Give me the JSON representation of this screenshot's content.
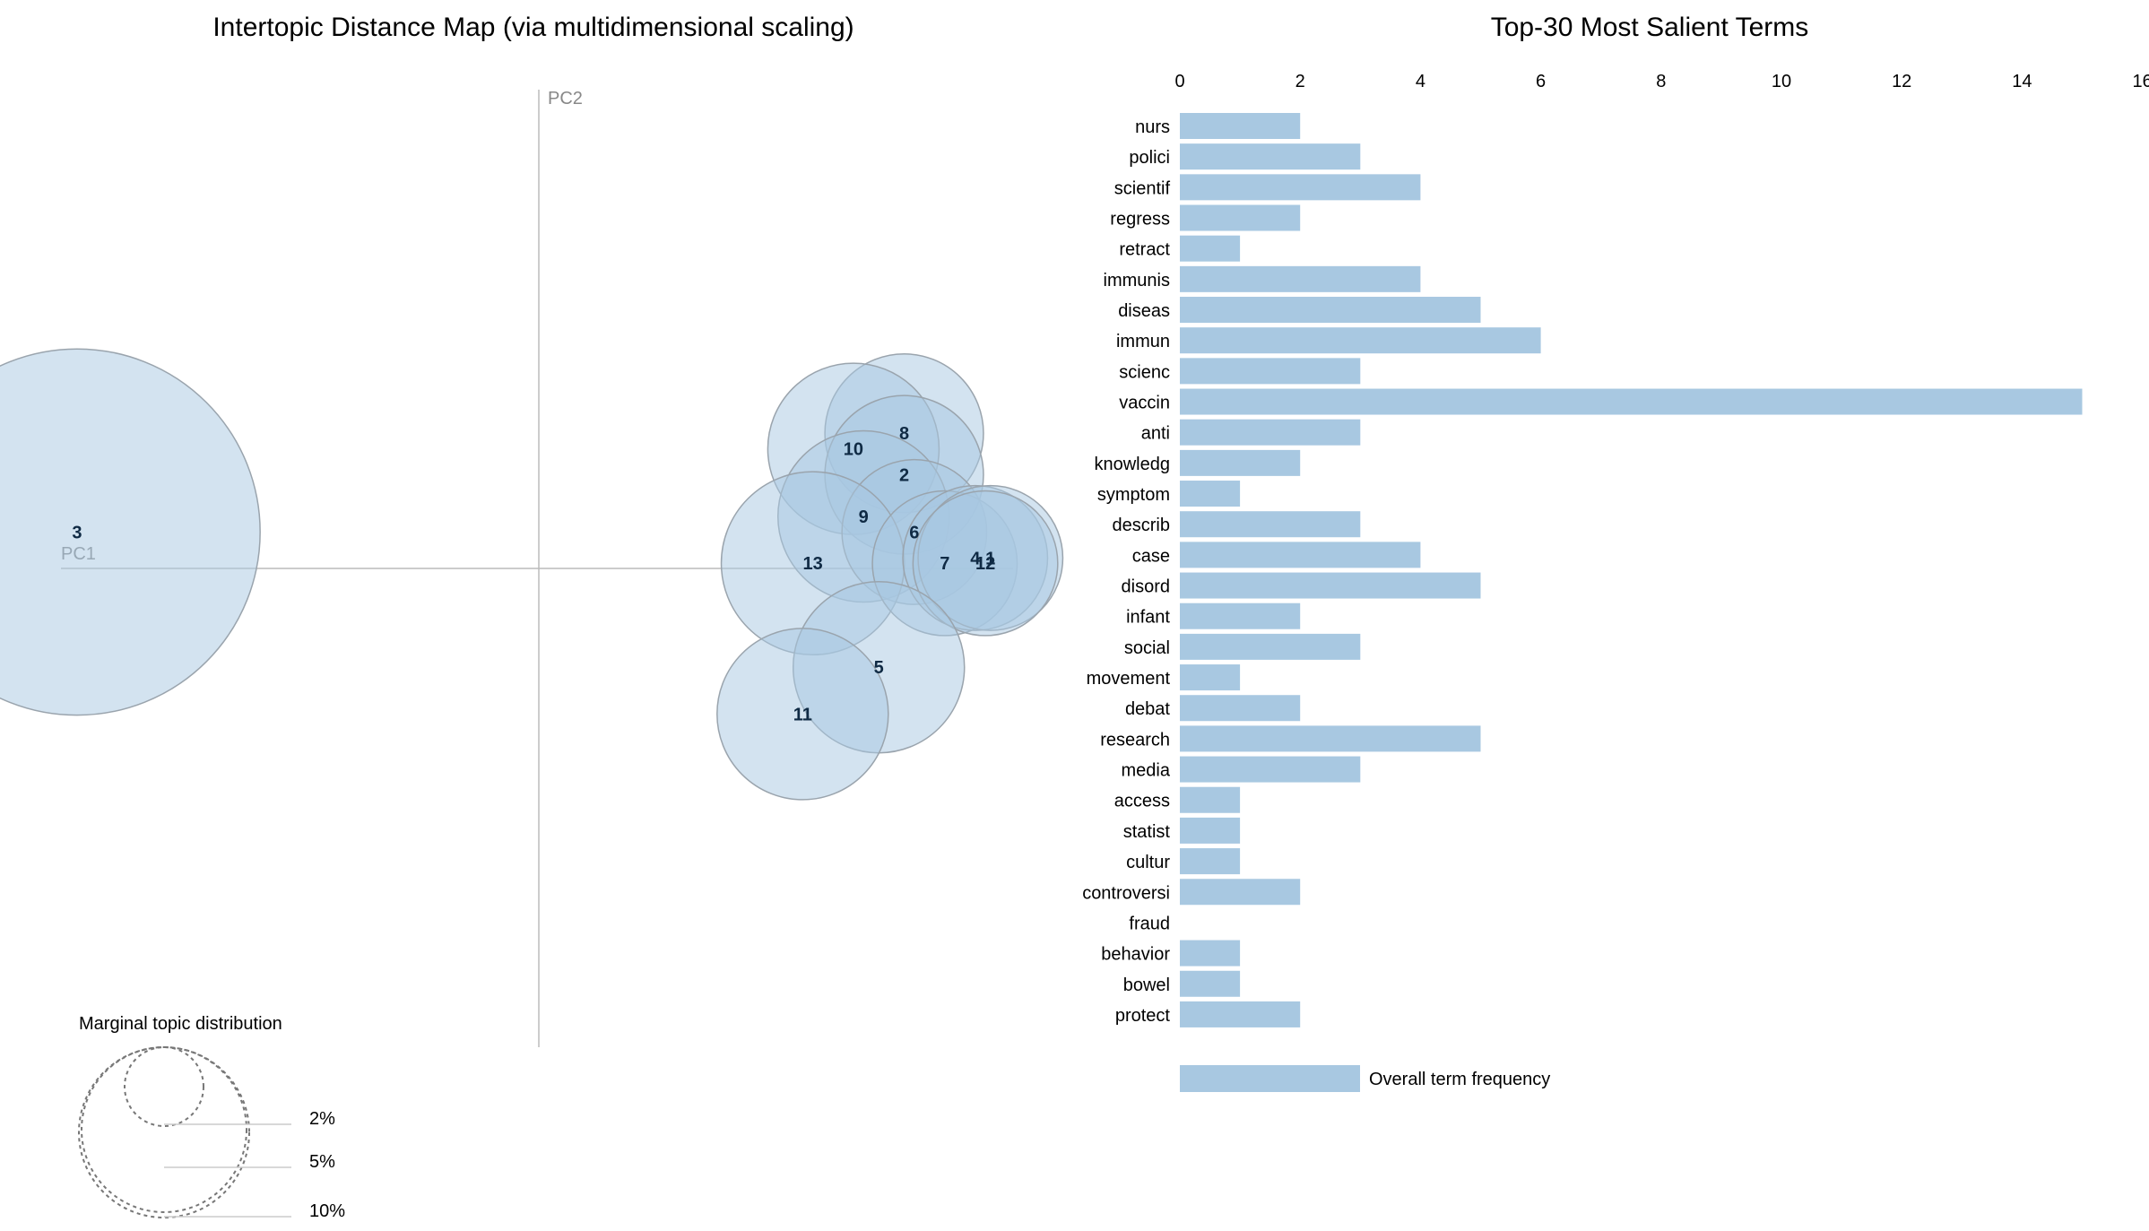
{
  "left_panel": {
    "title": "Intertopic Distance Map (via multidimensional scaling)",
    "pc1_label": "PC1",
    "pc2_label": "PC2",
    "legend_title": "Marginal topic distribution",
    "legend_labels": [
      "2%",
      "5%",
      "10%"
    ]
  },
  "right_panel": {
    "title": "Top-30 Most Salient Terms",
    "legend_label": "Overall term frequency"
  },
  "colors": {
    "bar": "#a8c8e1",
    "circle_fill": "#a8c8e1",
    "circle_stroke": "#9aa4ad",
    "axis": "#bbbbbb"
  },
  "chart_data": [
    {
      "type": "scatter",
      "title": "Intertopic Distance Map (via multidimensional scaling)",
      "xlabel": "PC1",
      "ylabel": "PC2",
      "series": [
        {
          "points": [
            {
              "topic": "3",
              "pc1": -0.91,
              "pc2": 0.07,
              "size": 32
            },
            {
              "topic": "8",
              "pc1": 0.72,
              "pc2": 0.26,
              "size": 6
            },
            {
              "topic": "10",
              "pc1": 0.62,
              "pc2": 0.23,
              "size": 7
            },
            {
              "topic": "2",
              "pc1": 0.72,
              "pc2": 0.18,
              "size": 6
            },
            {
              "topic": "9",
              "pc1": 0.64,
              "pc2": 0.1,
              "size": 7
            },
            {
              "topic": "6",
              "pc1": 0.74,
              "pc2": 0.07,
              "size": 5
            },
            {
              "topic": "13",
              "pc1": 0.54,
              "pc2": 0.01,
              "size": 8
            },
            {
              "topic": "7",
              "pc1": 0.8,
              "pc2": 0.01,
              "size": 5
            },
            {
              "topic": "4",
              "pc1": 0.86,
              "pc2": 0.02,
              "size": 5
            },
            {
              "topic": "1",
              "pc1": 0.89,
              "pc2": 0.02,
              "size": 5
            },
            {
              "topic": "12",
              "pc1": 0.88,
              "pc2": 0.01,
              "size": 5
            },
            {
              "topic": "5",
              "pc1": 0.67,
              "pc2": -0.19,
              "size": 7
            },
            {
              "topic": "11",
              "pc1": 0.52,
              "pc2": -0.28,
              "size": 7
            }
          ]
        }
      ],
      "legend": {
        "title": "Marginal topic distribution",
        "values": [
          "2%",
          "5%",
          "10%"
        ]
      }
    },
    {
      "type": "bar",
      "orientation": "horizontal",
      "title": "Top-30 Most Salient Terms",
      "categories": [
        "nurs",
        "polici",
        "scientif",
        "regress",
        "retract",
        "immunis",
        "diseas",
        "immun",
        "scienc",
        "vaccin",
        "anti",
        "knowledg",
        "symptom",
        "describ",
        "case",
        "disord",
        "infant",
        "social",
        "movement",
        "debat",
        "research",
        "media",
        "access",
        "statist",
        "cultur",
        "controversi",
        "fraud",
        "behavior",
        "bowel",
        "protect"
      ],
      "series": [
        {
          "name": "Overall term frequency",
          "values": [
            2,
            3,
            4,
            2,
            1,
            4,
            5,
            6,
            3,
            15,
            3,
            2,
            1,
            3,
            4,
            5,
            2,
            3,
            1,
            2,
            5,
            3,
            1,
            1,
            1,
            2,
            0,
            1,
            1,
            2
          ]
        }
      ],
      "xlim": [
        0,
        16
      ],
      "xticks": [
        "0",
        "2",
        "4",
        "6",
        "8",
        "10",
        "12",
        "14",
        "16"
      ],
      "legend_position": "bottom"
    }
  ]
}
